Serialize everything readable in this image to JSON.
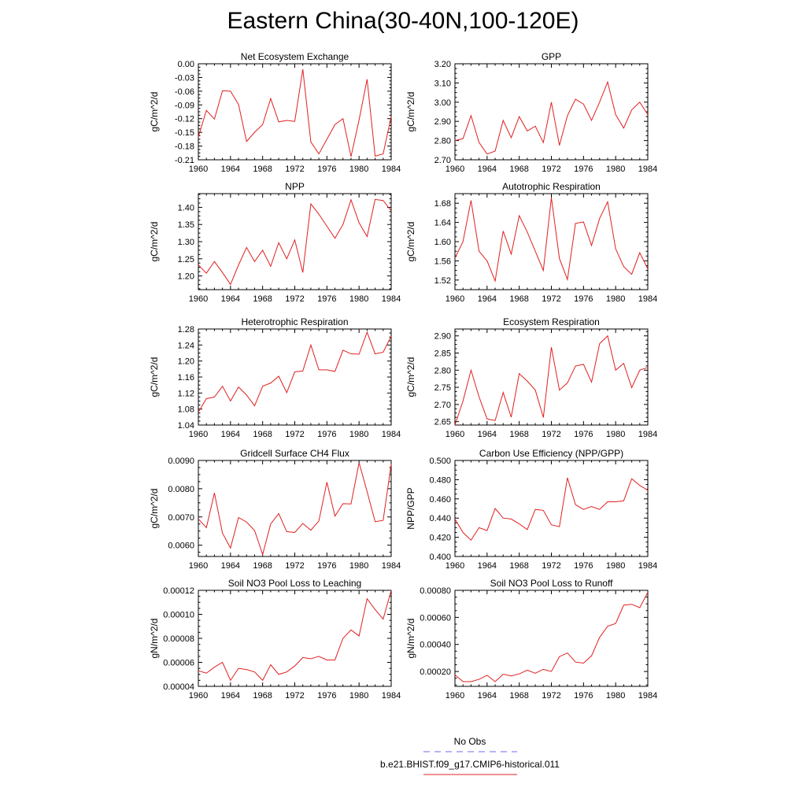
{
  "figure": {
    "title": "Eastern China(30-40N,100-120E)",
    "legend": {
      "entries": [
        {
          "label": "No Obs",
          "color": "#6b6bf0",
          "dash": true
        },
        {
          "label": "b.e21.BHIST.f09_g17.CMIP6-historical.011",
          "color": "#e02020",
          "dash": false
        }
      ]
    }
  },
  "chart_data": [
    {
      "type": "line",
      "title": "Net Ecosystem Exchange",
      "xlabel": "",
      "ylabel": "gC/m^2/d",
      "xlim": [
        1960,
        1984
      ],
      "ylim": [
        -0.21,
        0.0
      ],
      "xticks": [
        1960,
        1964,
        1968,
        1972,
        1976,
        1980,
        1984
      ],
      "yticks": [
        0.0,
        -0.03,
        -0.06,
        -0.09,
        -0.12,
        -0.15,
        -0.18,
        -0.21
      ],
      "ytick_labels": [
        "0.00",
        "-0.03",
        "-0.06",
        "-0.09",
        "-0.12",
        "-0.15",
        "-0.18",
        "-0.21"
      ],
      "series": [
        {
          "color": "#e02020",
          "x": [
            1960,
            1961,
            1962,
            1963,
            1964,
            1965,
            1966,
            1967,
            1968,
            1969,
            1970,
            1971,
            1972,
            1973,
            1974,
            1975,
            1976,
            1977,
            1978,
            1979,
            1980,
            1981,
            1982,
            1983,
            1984
          ],
          "y": [
            -0.16,
            -0.102,
            -0.121,
            -0.059,
            -0.06,
            -0.089,
            -0.17,
            -0.15,
            -0.133,
            -0.076,
            -0.127,
            -0.124,
            -0.126,
            -0.012,
            -0.171,
            -0.197,
            -0.165,
            -0.133,
            -0.12,
            -0.203,
            -0.123,
            -0.034,
            -0.202,
            -0.197,
            -0.115
          ]
        }
      ]
    },
    {
      "type": "line",
      "title": "GPP",
      "xlabel": "",
      "ylabel": "gC/m^2/d",
      "xlim": [
        1960,
        1984
      ],
      "ylim": [
        2.7,
        3.2
      ],
      "xticks": [
        1960,
        1964,
        1968,
        1972,
        1976,
        1980,
        1984
      ],
      "yticks": [
        2.7,
        2.8,
        2.9,
        3.0,
        3.1,
        3.2
      ],
      "ytick_labels": [
        "2.70",
        "2.80",
        "2.90",
        "3.00",
        "3.10",
        "3.20"
      ],
      "series": [
        {
          "color": "#e02020",
          "x": [
            1960,
            1961,
            1962,
            1963,
            1964,
            1965,
            1966,
            1967,
            1968,
            1969,
            1970,
            1971,
            1972,
            1973,
            1974,
            1975,
            1976,
            1977,
            1978,
            1979,
            1980,
            1981,
            1982,
            1983,
            1984
          ],
          "y": [
            2.8,
            2.81,
            2.93,
            2.79,
            2.73,
            2.745,
            2.905,
            2.815,
            2.925,
            2.85,
            2.875,
            2.79,
            3.0,
            2.775,
            2.93,
            3.015,
            2.99,
            2.905,
            3.0,
            3.105,
            2.935,
            2.865,
            2.96,
            3.0,
            2.935
          ]
        }
      ]
    },
    {
      "type": "line",
      "title": "NPP",
      "xlabel": "",
      "ylabel": "gC/m^2/d",
      "xlim": [
        1960,
        1984
      ],
      "ylim": [
        1.16,
        1.44
      ],
      "xticks": [
        1960,
        1964,
        1968,
        1972,
        1976,
        1980,
        1984
      ],
      "yticks": [
        1.2,
        1.25,
        1.3,
        1.35,
        1.4
      ],
      "ytick_labels": [
        "1.20",
        "1.25",
        "1.30",
        "1.35",
        "1.40"
      ],
      "series": [
        {
          "color": "#e02020",
          "x": [
            1960,
            1961,
            1962,
            1963,
            1964,
            1965,
            1966,
            1967,
            1968,
            1969,
            1970,
            1971,
            1972,
            1973,
            1974,
            1975,
            1976,
            1977,
            1978,
            1979,
            1980,
            1981,
            1982,
            1983,
            1984
          ],
          "y": [
            1.232,
            1.208,
            1.242,
            1.21,
            1.175,
            1.232,
            1.283,
            1.242,
            1.275,
            1.228,
            1.297,
            1.25,
            1.305,
            1.21,
            1.41,
            1.38,
            1.345,
            1.31,
            1.35,
            1.422,
            1.355,
            1.315,
            1.423,
            1.42,
            1.39
          ]
        }
      ]
    },
    {
      "type": "line",
      "title": "Autotrophic Respiration",
      "xlabel": "",
      "ylabel": "gC/m^2/d",
      "xlim": [
        1960,
        1984
      ],
      "ylim": [
        1.5,
        1.7
      ],
      "xticks": [
        1960,
        1964,
        1968,
        1972,
        1976,
        1980,
        1984
      ],
      "yticks": [
        1.52,
        1.56,
        1.6,
        1.64,
        1.68
      ],
      "ytick_labels": [
        "1.52",
        "1.56",
        "1.60",
        "1.64",
        "1.68"
      ],
      "series": [
        {
          "color": "#e02020",
          "x": [
            1960,
            1961,
            1962,
            1963,
            1964,
            1965,
            1966,
            1967,
            1968,
            1969,
            1970,
            1971,
            1972,
            1973,
            1974,
            1975,
            1976,
            1977,
            1978,
            1979,
            1980,
            1981,
            1982,
            1983,
            1984
          ],
          "y": [
            1.566,
            1.6,
            1.686,
            1.58,
            1.56,
            1.518,
            1.622,
            1.574,
            1.654,
            1.62,
            1.58,
            1.54,
            1.692,
            1.565,
            1.521,
            1.638,
            1.641,
            1.592,
            1.648,
            1.683,
            1.585,
            1.548,
            1.532,
            1.577,
            1.543
          ]
        }
      ]
    },
    {
      "type": "line",
      "title": "Heterotrophic Respiration",
      "xlabel": "",
      "ylabel": "gC/m^2/d",
      "xlim": [
        1960,
        1984
      ],
      "ylim": [
        1.04,
        1.28
      ],
      "xticks": [
        1960,
        1964,
        1968,
        1972,
        1976,
        1980,
        1984
      ],
      "yticks": [
        1.04,
        1.08,
        1.12,
        1.16,
        1.2,
        1.24,
        1.28
      ],
      "ytick_labels": [
        "1.04",
        "1.08",
        "1.12",
        "1.16",
        "1.20",
        "1.24",
        "1.28"
      ],
      "series": [
        {
          "color": "#e02020",
          "x": [
            1960,
            1961,
            1962,
            1963,
            1964,
            1965,
            1966,
            1967,
            1968,
            1969,
            1970,
            1971,
            1972,
            1973,
            1974,
            1975,
            1976,
            1977,
            1978,
            1979,
            1980,
            1981,
            1982,
            1983,
            1984
          ],
          "y": [
            1.072,
            1.106,
            1.11,
            1.137,
            1.1,
            1.135,
            1.115,
            1.088,
            1.137,
            1.145,
            1.162,
            1.121,
            1.173,
            1.175,
            1.24,
            1.178,
            1.178,
            1.174,
            1.227,
            1.218,
            1.217,
            1.272,
            1.218,
            1.222,
            1.262
          ]
        }
      ]
    },
    {
      "type": "line",
      "title": "Ecosystem Respiration",
      "xlabel": "",
      "ylabel": "gC/m^2/d",
      "xlim": [
        1960,
        1984
      ],
      "ylim": [
        2.64,
        2.92
      ],
      "xticks": [
        1960,
        1964,
        1968,
        1972,
        1976,
        1980,
        1984
      ],
      "yticks": [
        2.65,
        2.7,
        2.75,
        2.8,
        2.85,
        2.9
      ],
      "ytick_labels": [
        "2.65",
        "2.70",
        "2.75",
        "2.80",
        "2.85",
        "2.90"
      ],
      "series": [
        {
          "color": "#e02020",
          "x": [
            1960,
            1961,
            1962,
            1963,
            1964,
            1965,
            1966,
            1967,
            1968,
            1969,
            1970,
            1971,
            1972,
            1973,
            1974,
            1975,
            1976,
            1977,
            1978,
            1979,
            1980,
            1981,
            1982,
            1983,
            1984
          ],
          "y": [
            2.64,
            2.71,
            2.8,
            2.722,
            2.658,
            2.653,
            2.735,
            2.663,
            2.79,
            2.768,
            2.742,
            2.662,
            2.867,
            2.742,
            2.763,
            2.812,
            2.817,
            2.765,
            2.877,
            2.9,
            2.8,
            2.82,
            2.749,
            2.8,
            2.808
          ]
        }
      ]
    },
    {
      "type": "line",
      "title": "Gridcell Surface CH4 Flux",
      "xlabel": "",
      "ylabel": "gC/m^2/d",
      "xlim": [
        1960,
        1984
      ],
      "ylim": [
        0.0056,
        0.009
      ],
      "xticks": [
        1960,
        1964,
        1968,
        1972,
        1976,
        1980,
        1984
      ],
      "yticks": [
        0.006,
        0.007,
        0.008,
        0.009
      ],
      "ytick_labels": [
        "0.0060",
        "0.0070",
        "0.0080",
        "0.0090"
      ],
      "series": [
        {
          "color": "#e02020",
          "x": [
            1960,
            1961,
            1962,
            1963,
            1964,
            1965,
            1966,
            1967,
            1968,
            1969,
            1970,
            1971,
            1972,
            1973,
            1974,
            1975,
            1976,
            1977,
            1978,
            1979,
            1980,
            1981,
            1982,
            1983,
            1984
          ],
          "y": [
            0.00693,
            0.00662,
            0.00785,
            0.00643,
            0.0059,
            0.00698,
            0.00682,
            0.00652,
            0.00567,
            0.00675,
            0.00712,
            0.00648,
            0.00645,
            0.00677,
            0.00653,
            0.00686,
            0.00823,
            0.00703,
            0.00747,
            0.00746,
            0.00892,
            0.0079,
            0.00683,
            0.00688,
            0.00887
          ]
        }
      ]
    },
    {
      "type": "line",
      "title": "Carbon Use Efficiency (NPP/GPP)",
      "xlabel": "",
      "ylabel": "NPP/GPP",
      "xlim": [
        1960,
        1984
      ],
      "ylim": [
        0.4,
        0.5
      ],
      "xticks": [
        1960,
        1964,
        1968,
        1972,
        1976,
        1980,
        1984
      ],
      "yticks": [
        0.4,
        0.42,
        0.44,
        0.46,
        0.48,
        0.5
      ],
      "ytick_labels": [
        "0.400",
        "0.420",
        "0.440",
        "0.460",
        "0.480",
        "0.500"
      ],
      "series": [
        {
          "color": "#e02020",
          "x": [
            1960,
            1961,
            1962,
            1963,
            1964,
            1965,
            1966,
            1967,
            1968,
            1969,
            1970,
            1971,
            1972,
            1973,
            1974,
            1975,
            1976,
            1977,
            1978,
            1979,
            1980,
            1981,
            1982,
            1983,
            1984
          ],
          "y": [
            0.439,
            0.425,
            0.417,
            0.43,
            0.427,
            0.45,
            0.44,
            0.439,
            0.434,
            0.428,
            0.449,
            0.448,
            0.433,
            0.431,
            0.482,
            0.454,
            0.449,
            0.452,
            0.449,
            0.457,
            0.457,
            0.458,
            0.481,
            0.474,
            0.469
          ]
        }
      ]
    },
    {
      "type": "line",
      "title": "Soil NO3 Pool Loss to Leaching",
      "xlabel": "",
      "ylabel": "gN/m^2/d",
      "xlim": [
        1960,
        1984
      ],
      "ylim": [
        4e-05,
        0.00012
      ],
      "xticks": [
        1960,
        1964,
        1968,
        1972,
        1976,
        1980,
        1984
      ],
      "yticks": [
        4e-05,
        6e-05,
        8e-05,
        0.0001,
        0.00012
      ],
      "ytick_labels": [
        "0.00004",
        "0.00006",
        "0.00008",
        "0.00010",
        "0.00012"
      ],
      "series": [
        {
          "color": "#e02020",
          "x": [
            1960,
            1961,
            1962,
            1963,
            1964,
            1965,
            1966,
            1967,
            1968,
            1969,
            1970,
            1971,
            1972,
            1973,
            1974,
            1975,
            1976,
            1977,
            1978,
            1979,
            1980,
            1981,
            1982,
            1983,
            1984
          ],
          "y": [
            5.3e-05,
            5.1e-05,
            5.6e-05,
            6e-05,
            4.5e-05,
            5.5e-05,
            5.4e-05,
            5.2e-05,
            4.5e-05,
            5.8e-05,
            5e-05,
            5.2e-05,
            5.7e-05,
            6.4e-05,
            6.3e-05,
            6.5e-05,
            6.2e-05,
            6.2e-05,
            8e-05,
            8.7e-05,
            8.2e-05,
            0.000113,
            0.000104,
            9.6e-05,
            0.00012
          ]
        }
      ]
    },
    {
      "type": "line",
      "title": "Soil NO3 Pool Loss to Runoff",
      "xlabel": "",
      "ylabel": "gN/m^2/d",
      "xlim": [
        1960,
        1984
      ],
      "ylim": [
        9e-05,
        0.0008
      ],
      "xticks": [
        1960,
        1964,
        1968,
        1972,
        1976,
        1980,
        1984
      ],
      "yticks": [
        0.0002,
        0.0004,
        0.0006,
        0.0008
      ],
      "ytick_labels": [
        "0.00020",
        "0.00040",
        "0.00060",
        "0.00080"
      ],
      "series": [
        {
          "color": "#e02020",
          "x": [
            1960,
            1961,
            1962,
            1963,
            1964,
            1965,
            1966,
            1967,
            1968,
            1969,
            1970,
            1971,
            1972,
            1973,
            1974,
            1975,
            1976,
            1977,
            1978,
            1979,
            1980,
            1981,
            1982,
            1983,
            1984
          ],
          "y": [
            0.000175,
            0.000125,
            0.000125,
            0.000142,
            0.000172,
            0.000125,
            0.00018,
            0.000167,
            0.000182,
            0.00021,
            0.000187,
            0.000216,
            0.0002,
            0.00031,
            0.000337,
            0.00027,
            0.000262,
            0.000316,
            0.000452,
            0.000534,
            0.000555,
            0.00069,
            0.000697,
            0.000672,
            0.000785
          ]
        }
      ]
    }
  ]
}
